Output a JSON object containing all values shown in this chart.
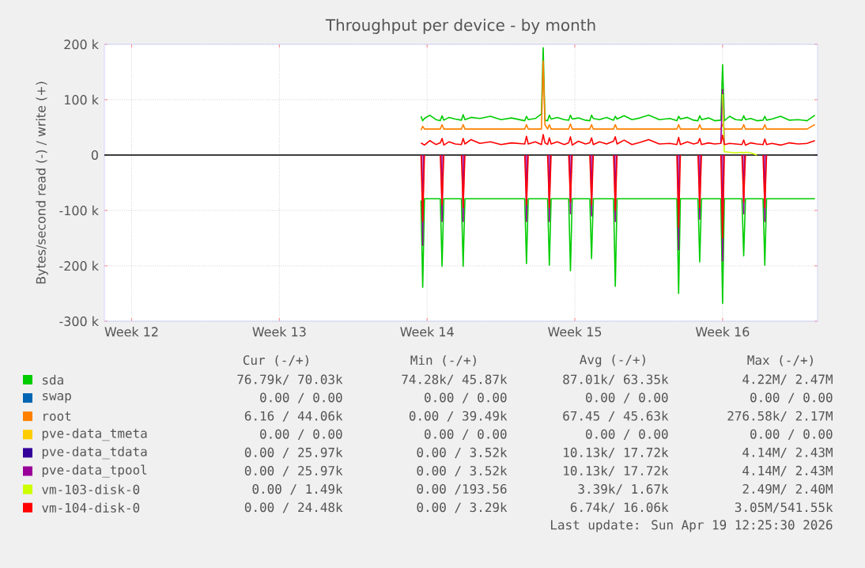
{
  "chart_data": {
    "type": "line",
    "title": "Throughput per device - by month",
    "ylabel": "Bytes/second read (-) / write (+)",
    "x": [
      "2026-04-02T05:00",
      "2026-04-02T07:00",
      "2026-04-02T09:00",
      "2026-04-02T15:00",
      "2026-04-02T22:00",
      "2026-04-03T03:00",
      "2026-04-03T05:00",
      "2026-04-03T07:00",
      "2026-04-03T13:00",
      "2026-04-03T20:00",
      "2026-04-04T03:00",
      "2026-04-04T05:00",
      "2026-04-04T07:00",
      "2026-04-04T14:00",
      "2026-04-05T00:00",
      "2026-04-05T12:00",
      "2026-04-06T00:00",
      "2026-04-06T12:00",
      "2026-04-07T03:00",
      "2026-04-07T05:00",
      "2026-04-07T07:00",
      "2026-04-07T15:00",
      "2026-04-07T22:00",
      "2026-04-08T00:00",
      "2026-04-08T02:00",
      "2026-04-08T05:00",
      "2026-04-08T07:00",
      "2026-04-08T09:00",
      "2026-04-08T16:00",
      "2026-04-09T00:00",
      "2026-04-09T05:00",
      "2026-04-09T07:00",
      "2026-04-09T09:00",
      "2026-04-09T16:00",
      "2026-04-10T00:00",
      "2026-04-10T05:00",
      "2026-04-10T07:00",
      "2026-04-10T09:00",
      "2026-04-10T16:00",
      "2026-04-11T00:00",
      "2026-04-11T08:00",
      "2026-04-11T10:00",
      "2026-04-11T12:00",
      "2026-04-11T20:00",
      "2026-04-12T05:00",
      "2026-04-12T14:00",
      "2026-04-13T00:00",
      "2026-04-13T12:00",
      "2026-04-14T00:00",
      "2026-04-14T08:00",
      "2026-04-14T10:00",
      "2026-04-14T12:00",
      "2026-04-14T20:00",
      "2026-04-15T03:00",
      "2026-04-15T08:00",
      "2026-04-15T10:00",
      "2026-04-15T12:00",
      "2026-04-15T20:00",
      "2026-04-16T03:00",
      "2026-04-16T10:00",
      "2026-04-16T12:00",
      "2026-04-16T14:00",
      "2026-04-16T20:00",
      "2026-04-17T03:00",
      "2026-04-17T10:00",
      "2026-04-17T12:00",
      "2026-04-17T14:00",
      "2026-04-17T20:00",
      "2026-04-18T03:00",
      "2026-04-18T10:00",
      "2026-04-18T12:00",
      "2026-04-18T14:00",
      "2026-04-18T20:00",
      "2026-04-19T06:00",
      "2026-04-19T16:00",
      "2026-04-20T02:00",
      "2026-04-20T12:00",
      "2026-04-20T21:00"
    ],
    "xlim": [
      "2026-03-18T05:00",
      "2026-04-21T00:00"
    ],
    "xticks": [
      {
        "value": "2026-03-19T12:00",
        "label": "Week 12"
      },
      {
        "value": "2026-03-26T12:00",
        "label": "Week 13"
      },
      {
        "value": "2026-04-02T12:00",
        "label": "Week 14"
      },
      {
        "value": "2026-04-09T12:00",
        "label": "Week 15"
      },
      {
        "value": "2026-04-16T12:00",
        "label": "Week 16"
      }
    ],
    "ylim": [
      -300000,
      200000
    ],
    "yticks": [
      {
        "value": -300000,
        "label": "-300 k"
      },
      {
        "value": -200000,
        "label": "-200 k"
      },
      {
        "value": -100000,
        "label": "-100 k"
      },
      {
        "value": 0,
        "label": "0"
      },
      {
        "value": 100000,
        "label": "100 k"
      },
      {
        "value": 200000,
        "label": "200 k"
      }
    ],
    "grid": true,
    "legend": "bottom",
    "marker": "none",
    "line_style": "solid",
    "ref_lines": [
      {
        "axis": "y",
        "value": 0,
        "color": "#000000"
      }
    ],
    "series": [
      {
        "name": "sda",
        "color": "#00cc00",
        "values": [
          70000,
          62000,
          66000,
          72000,
          64000,
          62000,
          71000,
          63000,
          68000,
          65000,
          63000,
          73000,
          64000,
          68000,
          66000,
          70000,
          64000,
          67000,
          62000,
          70000,
          64000,
          66000,
          74000,
          194000,
          63000,
          62000,
          72000,
          65000,
          68000,
          64000,
          63000,
          72000,
          65000,
          67000,
          63000,
          62000,
          72000,
          66000,
          64000,
          68000,
          63000,
          70000,
          65000,
          71000,
          64000,
          67000,
          72000,
          64000,
          66000,
          62000,
          70000,
          65000,
          68000,
          63000,
          62000,
          71000,
          64000,
          67000,
          62000,
          63000,
          163000,
          62000,
          70000,
          64000,
          63000,
          71000,
          64000,
          66000,
          62000,
          63000,
          70000,
          63000,
          65000,
          70000,
          63000,
          64000,
          62000,
          72000
        ]
      },
      {
        "color": "#00cc00",
        "values": [
          -82000,
          -239000,
          -79000,
          -79000,
          -79000,
          -79000,
          -201000,
          -79000,
          -79000,
          -79000,
          -79000,
          -201000,
          -79000,
          -79000,
          -79000,
          -79000,
          -79000,
          -79000,
          -79000,
          -196000,
          -79000,
          -79000,
          -79000,
          -79000,
          -79000,
          -79000,
          -199000,
          -79000,
          -79000,
          -79000,
          -79000,
          -209000,
          -79000,
          -79000,
          -79000,
          -79000,
          -187000,
          -79000,
          -79000,
          -79000,
          -79000,
          -237000,
          -79000,
          -79000,
          -79000,
          -79000,
          -79000,
          -79000,
          -79000,
          -79000,
          -250000,
          -79000,
          -79000,
          -79000,
          -79000,
          -193000,
          -79000,
          -79000,
          -79000,
          -79000,
          -268000,
          -79000,
          -79000,
          -79000,
          -79000,
          -182000,
          -79000,
          -79000,
          -79000,
          -79000,
          -199000,
          -79000,
          -79000,
          -79000,
          -79000,
          -79000,
          -79000,
          -79000
        ]
      },
      {
        "name": "swap",
        "color": "#0066b3",
        "values": [
          null,
          null,
          null,
          null,
          null,
          null,
          null,
          null,
          null,
          null,
          null,
          null,
          null,
          null,
          null,
          null,
          null,
          null,
          null,
          null,
          null,
          null,
          null,
          null,
          null,
          null,
          null,
          null,
          null,
          null,
          null,
          null,
          null,
          null,
          null,
          null,
          null,
          null,
          null,
          null,
          null,
          null,
          null,
          null,
          null,
          null,
          null,
          null,
          null,
          null,
          null,
          null,
          null,
          null,
          null,
          null,
          null,
          null,
          null,
          null,
          null,
          null,
          null,
          null,
          null,
          null,
          null,
          null,
          null,
          null,
          null,
          null,
          null,
          null,
          null,
          null,
          null,
          null
        ]
      },
      {
        "name": "root",
        "color": "#ff8000",
        "values": [
          45000,
          52000,
          47000,
          47000,
          47000,
          47000,
          55000,
          47000,
          47000,
          47000,
          47000,
          55000,
          47000,
          47000,
          47000,
          47000,
          47000,
          47000,
          47000,
          55000,
          47000,
          47000,
          47000,
          170000,
          55000,
          47000,
          55000,
          47000,
          47000,
          47000,
          47000,
          56000,
          47000,
          47000,
          47000,
          47000,
          55000,
          47000,
          47000,
          47000,
          47000,
          55000,
          47000,
          47000,
          47000,
          47000,
          47000,
          47000,
          47000,
          47000,
          55000,
          47000,
          47000,
          47000,
          47000,
          55000,
          47000,
          47000,
          47000,
          47000,
          56000,
          47000,
          47000,
          47000,
          47000,
          55000,
          47000,
          47000,
          47000,
          47000,
          55000,
          47000,
          47000,
          47000,
          47000,
          47000,
          47000,
          55000
        ]
      },
      {
        "name": "pve-data_tmeta",
        "color": "#ffcc00",
        "values": [
          null,
          null,
          null,
          null,
          null,
          null,
          null,
          null,
          null,
          null,
          null,
          null,
          null,
          null,
          null,
          null,
          null,
          null,
          null,
          null,
          null,
          null,
          null,
          null,
          null,
          null,
          null,
          null,
          null,
          null,
          null,
          null,
          null,
          null,
          null,
          null,
          null,
          null,
          null,
          null,
          null,
          null,
          null,
          null,
          null,
          null,
          null,
          null,
          null,
          null,
          null,
          null,
          null,
          null,
          null,
          null,
          null,
          null,
          null,
          null,
          null,
          null,
          null,
          null,
          null,
          null,
          null,
          null,
          null,
          null,
          null,
          null,
          null,
          null,
          null,
          null,
          null,
          null
        ]
      },
      {
        "name": "pve-data_tdata",
        "color": "#330099",
        "values": [
          null,
          null,
          null,
          null,
          null,
          null,
          null,
          null,
          null,
          null,
          null,
          null,
          null,
          null,
          null,
          null,
          null,
          null,
          null,
          null,
          null,
          null,
          null,
          null,
          null,
          null,
          null,
          null,
          null,
          null,
          null,
          null,
          null,
          null,
          null,
          null,
          null,
          null,
          null,
          null,
          null,
          null,
          null,
          null,
          null,
          null,
          null,
          null,
          null,
          null,
          null,
          null,
          null,
          null,
          null,
          null,
          null,
          null,
          null,
          null,
          null,
          null,
          null,
          null,
          null,
          null,
          null,
          null,
          null,
          null,
          null,
          null,
          null,
          null,
          null,
          null,
          null,
          null
        ]
      },
      {
        "name": "pve-data_tpool",
        "color": "#990099",
        "values": [
          null,
          null,
          null,
          null,
          null,
          null,
          null,
          null,
          null,
          null,
          null,
          null,
          null,
          null,
          null,
          null,
          null,
          null,
          null,
          null,
          null,
          null,
          null,
          null,
          null,
          null,
          null,
          null,
          null,
          null,
          null,
          null,
          null,
          null,
          null,
          null,
          null,
          null,
          null,
          null,
          null,
          null,
          null,
          null,
          null,
          null,
          null,
          null,
          null,
          null,
          null,
          null,
          null,
          null,
          null,
          null,
          null,
          null,
          null,
          22000,
          118000,
          22000,
          null,
          null,
          null,
          null,
          null,
          null,
          null,
          null,
          null,
          null,
          null,
          null,
          null,
          null,
          null,
          null
        ]
      },
      {
        "color": "#990099",
        "x": [
          "2026-04-02T06:00",
          "2026-04-02T07:00",
          "2026-04-02T08:00",
          "2026-04-02T09:00",
          "2026-04-03T04:00",
          "2026-04-03T05:00",
          "2026-04-03T06:00",
          "2026-04-03T07:00",
          "2026-04-04T04:00",
          "2026-04-04T05:00",
          "2026-04-04T06:00",
          "2026-04-04T07:00",
          "2026-04-07T04:00",
          "2026-04-07T05:00",
          "2026-04-07T06:00",
          "2026-04-07T07:00",
          "2026-04-08T06:00",
          "2026-04-08T07:00",
          "2026-04-08T08:00",
          "2026-04-08T09:00",
          "2026-04-09T06:00",
          "2026-04-09T07:00",
          "2026-04-09T08:00",
          "2026-04-09T09:00",
          "2026-04-10T06:00",
          "2026-04-10T07:00",
          "2026-04-10T08:00",
          "2026-04-10T09:00",
          "2026-04-11T09:00",
          "2026-04-11T10:00",
          "2026-04-11T11:00",
          "2026-04-11T12:00",
          "2026-04-14T09:00",
          "2026-04-14T10:00",
          "2026-04-14T11:00",
          "2026-04-14T12:00",
          "2026-04-15T09:00",
          "2026-04-15T10:00",
          "2026-04-15T11:00",
          "2026-04-15T12:00",
          "2026-04-16T11:00",
          "2026-04-16T12:00",
          "2026-04-16T13:00",
          "2026-04-16T14:00",
          "2026-04-17T11:00",
          "2026-04-17T12:00",
          "2026-04-17T13:00",
          "2026-04-17T14:00",
          "2026-04-18T11:00",
          "2026-04-18T12:00",
          "2026-04-18T13:00"
        ],
        "values": [
          0,
          -163000,
          0,
          null,
          0,
          -120000,
          0,
          null,
          0,
          -120000,
          0,
          null,
          0,
          -120000,
          0,
          null,
          0,
          -120000,
          0,
          null,
          0,
          -106000,
          0,
          null,
          0,
          -110000,
          0,
          null,
          0,
          -120000,
          0,
          null,
          0,
          -171000,
          0,
          null,
          0,
          -116000,
          0,
          null,
          0,
          -191000,
          0,
          null,
          0,
          -106000,
          0,
          null,
          0,
          -120000,
          0
        ]
      },
      {
        "name": "vm-103-disk-0",
        "color": "#ccff00",
        "values": [
          null,
          null,
          null,
          null,
          null,
          null,
          null,
          null,
          null,
          null,
          null,
          null,
          null,
          null,
          null,
          null,
          null,
          null,
          null,
          null,
          null,
          null,
          null,
          null,
          null,
          null,
          null,
          null,
          null,
          null,
          null,
          null,
          null,
          null,
          null,
          null,
          null,
          null,
          null,
          null,
          null,
          null,
          null,
          null,
          null,
          null,
          null,
          null,
          null,
          null,
          null,
          null,
          null,
          null,
          null,
          null,
          null,
          null,
          null,
          null,
          110000,
          6000,
          5000,
          4000,
          5000,
          4000,
          5000,
          4000,
          0,
          null,
          null,
          null,
          null,
          null,
          null,
          null,
          null,
          null
        ]
      },
      {
        "name": "vm-104-disk-0",
        "color": "#ff0000",
        "values": [
          22000,
          20000,
          18000,
          26000,
          19000,
          22000,
          30000,
          18000,
          24000,
          20000,
          19000,
          30000,
          20000,
          28000,
          21000,
          24000,
          19000,
          22000,
          20000,
          34000,
          20000,
          24000,
          19000,
          37000,
          22000,
          19000,
          31000,
          20000,
          24000,
          19000,
          22000,
          33000,
          18000,
          25000,
          20000,
          22000,
          31000,
          19000,
          24000,
          20000,
          25000,
          33000,
          20000,
          27000,
          19000,
          23000,
          28000,
          20000,
          21000,
          19000,
          32000,
          19000,
          24000,
          20000,
          22000,
          30000,
          19000,
          22000,
          20000,
          21000,
          36000,
          19000,
          21000,
          20000,
          19000,
          27000,
          18000,
          22000,
          20000,
          19000,
          29000,
          19000,
          21000,
          18000,
          22000,
          20000,
          21000,
          26000
        ]
      },
      {
        "color": "#ff0000",
        "values": [
          0,
          -120000,
          0,
          null,
          null,
          0,
          -90000,
          0,
          null,
          null,
          0,
          -95000,
          0,
          null,
          null,
          null,
          null,
          null,
          0,
          -90000,
          0,
          null,
          null,
          null,
          null,
          0,
          -95000,
          0,
          null,
          null,
          0,
          -85000,
          0,
          null,
          null,
          0,
          -90000,
          0,
          null,
          null,
          0,
          -100000,
          0,
          null,
          null,
          null,
          null,
          null,
          null,
          0,
          -130000,
          0,
          null,
          null,
          0,
          -95000,
          0,
          null,
          null,
          0,
          -150000,
          0,
          null,
          null,
          0,
          -85000,
          0,
          null,
          null,
          0,
          -95000,
          0,
          null,
          null,
          null,
          null,
          null,
          null
        ]
      }
    ],
    "annotations": [
      "Cur (-/+)",
      "Min (-/+)",
      "Avg (-/+)",
      "Max (-/+)",
      "76.79k/ 70.03k",
      "74.28k/ 45.87k",
      "87.01k/ 63.35k",
      "4.22M/  2.47M",
      "0.00 /  0.00",
      "0.00 /  0.00",
      "0.00 /  0.00",
      "0.00 /  0.00",
      "6.16 / 44.06k",
      "0.00 / 39.49k",
      "67.45 / 45.63k",
      "276.58k/  2.17M",
      "0.00 /  0.00",
      "0.00 /  0.00",
      "0.00 /  0.00",
      "0.00 /  0.00",
      "0.00 / 25.97k",
      "0.00 /  3.52k",
      "10.13k/ 17.72k",
      "4.14M/  2.43M",
      "0.00 / 25.97k",
      "0.00 /  3.52k",
      "10.13k/ 17.72k",
      "4.14M/  2.43M",
      "0.00 /  1.49k",
      "0.00 /193.56",
      "3.39k/  1.67k",
      "2.49M/  2.40M",
      "0.00 / 24.48k",
      "0.00 /  3.29k",
      "6.74k/ 16.06k",
      "3.05M/541.55k",
      "Last update: Sun Apr 19 12:25:30 2026"
    ]
  }
}
